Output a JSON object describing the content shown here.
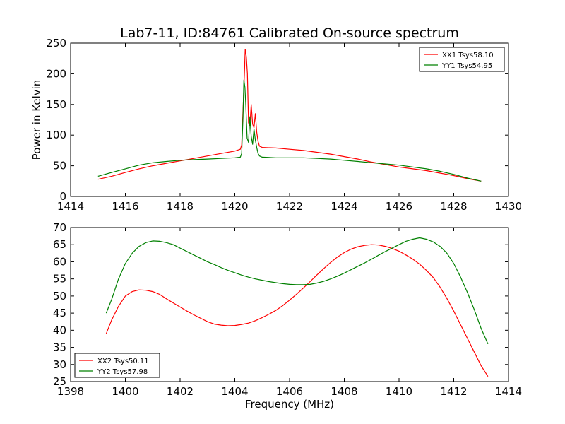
{
  "title": "Lab7-11, ID:84761 Calibrated On-source spectrum",
  "colors": {
    "red": "#ff0000",
    "green": "#008000"
  },
  "chart_data": [
    {
      "type": "line",
      "ylabel": "Power in Kelvin",
      "xlabel": "",
      "xlim": [
        1414,
        1430
      ],
      "ylim": [
        0,
        250
      ],
      "xticks": [
        "1414",
        "1416",
        "1418",
        "1420",
        "1422",
        "1424",
        "1426",
        "1428",
        "1430"
      ],
      "yticks": [
        "0",
        "50",
        "100",
        "150",
        "200",
        "250"
      ],
      "legend_position": "top-right",
      "series": [
        {
          "name": "XX1 Tsys58.10",
          "color": "#ff0000",
          "points": [
            [
              1415.0,
              28
            ],
            [
              1415.5,
              33
            ],
            [
              1416.0,
              39
            ],
            [
              1416.5,
              45
            ],
            [
              1417.0,
              50
            ],
            [
              1417.5,
              54
            ],
            [
              1418.0,
              58
            ],
            [
              1418.5,
              62
            ],
            [
              1419.0,
              66
            ],
            [
              1419.5,
              70
            ],
            [
              1420.0,
              74
            ],
            [
              1420.2,
              77
            ],
            [
              1420.25,
              84
            ],
            [
              1420.3,
              140
            ],
            [
              1420.35,
              200
            ],
            [
              1420.38,
              240
            ],
            [
              1420.42,
              228
            ],
            [
              1420.46,
              200
            ],
            [
              1420.5,
              120
            ],
            [
              1420.55,
              115
            ],
            [
              1420.6,
              150
            ],
            [
              1420.65,
              118
            ],
            [
              1420.7,
              112
            ],
            [
              1420.75,
              135
            ],
            [
              1420.8,
              105
            ],
            [
              1420.85,
              90
            ],
            [
              1420.9,
              82
            ],
            [
              1421.0,
              80
            ],
            [
              1421.5,
              79
            ],
            [
              1422.0,
              77
            ],
            [
              1422.5,
              75
            ],
            [
              1423.0,
              72
            ],
            [
              1423.5,
              69
            ],
            [
              1424.0,
              65
            ],
            [
              1424.5,
              61
            ],
            [
              1425.0,
              56
            ],
            [
              1425.5,
              52
            ],
            [
              1426.0,
              48
            ],
            [
              1426.5,
              45
            ],
            [
              1427.0,
              42
            ],
            [
              1427.5,
              38
            ],
            [
              1428.0,
              34
            ],
            [
              1428.5,
              29
            ],
            [
              1429.0,
              25
            ]
          ]
        },
        {
          "name": "YY1 Tsys54.95",
          "color": "#008000",
          "points": [
            [
              1415.0,
              33
            ],
            [
              1415.5,
              39
            ],
            [
              1416.0,
              45
            ],
            [
              1416.5,
              51
            ],
            [
              1417.0,
              55
            ],
            [
              1417.5,
              57
            ],
            [
              1418.0,
              59
            ],
            [
              1418.5,
              60
            ],
            [
              1419.0,
              61
            ],
            [
              1419.5,
              62
            ],
            [
              1420.0,
              63
            ],
            [
              1420.2,
              64
            ],
            [
              1420.25,
              70
            ],
            [
              1420.3,
              130
            ],
            [
              1420.33,
              190
            ],
            [
              1420.37,
              178
            ],
            [
              1420.4,
              150
            ],
            [
              1420.45,
              95
            ],
            [
              1420.5,
              88
            ],
            [
              1420.55,
              130
            ],
            [
              1420.6,
              98
            ],
            [
              1420.65,
              85
            ],
            [
              1420.7,
              110
            ],
            [
              1420.75,
              92
            ],
            [
              1420.8,
              80
            ],
            [
              1420.85,
              70
            ],
            [
              1420.9,
              66
            ],
            [
              1421.0,
              64
            ],
            [
              1421.5,
              63
            ],
            [
              1422.0,
              63
            ],
            [
              1422.5,
              63
            ],
            [
              1423.0,
              62
            ],
            [
              1423.5,
              61
            ],
            [
              1424.0,
              59
            ],
            [
              1424.5,
              57
            ],
            [
              1425.0,
              55
            ],
            [
              1425.5,
              53
            ],
            [
              1426.0,
              51
            ],
            [
              1426.5,
              48
            ],
            [
              1427.0,
              45
            ],
            [
              1427.5,
              41
            ],
            [
              1428.0,
              36
            ],
            [
              1428.5,
              30
            ],
            [
              1429.0,
              25
            ]
          ]
        }
      ]
    },
    {
      "type": "line",
      "ylabel": "",
      "xlabel": "Frequency (MHz)",
      "xlim": [
        1398,
        1414
      ],
      "ylim": [
        25,
        70
      ],
      "xticks": [
        "1398",
        "1400",
        "1402",
        "1404",
        "1406",
        "1408",
        "1410",
        "1412",
        "1414"
      ],
      "yticks": [
        "25",
        "30",
        "35",
        "40",
        "45",
        "50",
        "55",
        "60",
        "65",
        "70"
      ],
      "legend_position": "bottom-left",
      "series": [
        {
          "name": "XX2 Tsys50.11",
          "color": "#ff0000",
          "points": [
            [
              1399.3,
              39
            ],
            [
              1399.5,
              43
            ],
            [
              1399.75,
              47
            ],
            [
              1400.0,
              50
            ],
            [
              1400.25,
              51.3
            ],
            [
              1400.5,
              51.8
            ],
            [
              1400.75,
              51.7
            ],
            [
              1401.0,
              51.3
            ],
            [
              1401.25,
              50.5
            ],
            [
              1401.5,
              49.2
            ],
            [
              1401.75,
              48
            ],
            [
              1402.0,
              46.8
            ],
            [
              1402.25,
              45.6
            ],
            [
              1402.5,
              44.5
            ],
            [
              1402.75,
              43.5
            ],
            [
              1403.0,
              42.5
            ],
            [
              1403.25,
              41.8
            ],
            [
              1403.5,
              41.5
            ],
            [
              1403.75,
              41.3
            ],
            [
              1404.0,
              41.4
            ],
            [
              1404.25,
              41.7
            ],
            [
              1404.5,
              42.1
            ],
            [
              1404.75,
              42.8
            ],
            [
              1405.0,
              43.7
            ],
            [
              1405.25,
              44.7
            ],
            [
              1405.5,
              45.8
            ],
            [
              1405.75,
              47.2
            ],
            [
              1406.0,
              48.8
            ],
            [
              1406.25,
              50.5
            ],
            [
              1406.5,
              52.3
            ],
            [
              1406.75,
              54.2
            ],
            [
              1407.0,
              56.2
            ],
            [
              1407.25,
              58
            ],
            [
              1407.5,
              59.8
            ],
            [
              1407.75,
              61.4
            ],
            [
              1408.0,
              62.7
            ],
            [
              1408.25,
              63.7
            ],
            [
              1408.5,
              64.4
            ],
            [
              1408.75,
              64.8
            ],
            [
              1409.0,
              65
            ],
            [
              1409.25,
              64.9
            ],
            [
              1409.5,
              64.5
            ],
            [
              1409.75,
              63.9
            ],
            [
              1410.0,
              63.1
            ],
            [
              1410.25,
              62
            ],
            [
              1410.5,
              60.8
            ],
            [
              1410.75,
              59.3
            ],
            [
              1411.0,
              57.5
            ],
            [
              1411.25,
              55.4
            ],
            [
              1411.5,
              52.6
            ],
            [
              1411.75,
              49.3
            ],
            [
              1412.0,
              45.6
            ],
            [
              1412.25,
              41.6
            ],
            [
              1412.5,
              37.6
            ],
            [
              1412.75,
              33.6
            ],
            [
              1413.0,
              29.6
            ],
            [
              1413.25,
              26.5
            ]
          ]
        },
        {
          "name": "YY2 Tsys57.98",
          "color": "#008000",
          "points": [
            [
              1399.3,
              45
            ],
            [
              1399.5,
              49
            ],
            [
              1399.75,
              55
            ],
            [
              1400.0,
              59.5
            ],
            [
              1400.25,
              62.5
            ],
            [
              1400.5,
              64.5
            ],
            [
              1400.75,
              65.6
            ],
            [
              1401.0,
              66.1
            ],
            [
              1401.25,
              66
            ],
            [
              1401.5,
              65.6
            ],
            [
              1401.75,
              65
            ],
            [
              1402.0,
              64
            ],
            [
              1402.25,
              63
            ],
            [
              1402.5,
              62
            ],
            [
              1402.75,
              61
            ],
            [
              1403.0,
              60
            ],
            [
              1403.25,
              59.2
            ],
            [
              1403.5,
              58.3
            ],
            [
              1403.75,
              57.5
            ],
            [
              1404.0,
              56.8
            ],
            [
              1404.25,
              56.1
            ],
            [
              1404.5,
              55.5
            ],
            [
              1404.75,
              55
            ],
            [
              1405.0,
              54.6
            ],
            [
              1405.25,
              54.2
            ],
            [
              1405.5,
              53.9
            ],
            [
              1405.75,
              53.6
            ],
            [
              1406.0,
              53.4
            ],
            [
              1406.25,
              53.3
            ],
            [
              1406.5,
              53.3
            ],
            [
              1406.75,
              53.4
            ],
            [
              1407.0,
              53.8
            ],
            [
              1407.25,
              54.3
            ],
            [
              1407.5,
              55
            ],
            [
              1407.75,
              55.8
            ],
            [
              1408.0,
              56.7
            ],
            [
              1408.25,
              57.7
            ],
            [
              1408.5,
              58.7
            ],
            [
              1408.75,
              59.7
            ],
            [
              1409.0,
              60.8
            ],
            [
              1409.25,
              61.9
            ],
            [
              1409.5,
              63
            ],
            [
              1409.75,
              64
            ],
            [
              1410.0,
              65
            ],
            [
              1410.25,
              66
            ],
            [
              1410.5,
              66.6
            ],
            [
              1410.75,
              67
            ],
            [
              1411.0,
              66.6
            ],
            [
              1411.25,
              65.8
            ],
            [
              1411.5,
              64.5
            ],
            [
              1411.75,
              62.5
            ],
            [
              1412.0,
              59.5
            ],
            [
              1412.25,
              55.5
            ],
            [
              1412.5,
              51
            ],
            [
              1412.75,
              46
            ],
            [
              1413.0,
              40.5
            ],
            [
              1413.25,
              36
            ]
          ]
        }
      ]
    }
  ]
}
